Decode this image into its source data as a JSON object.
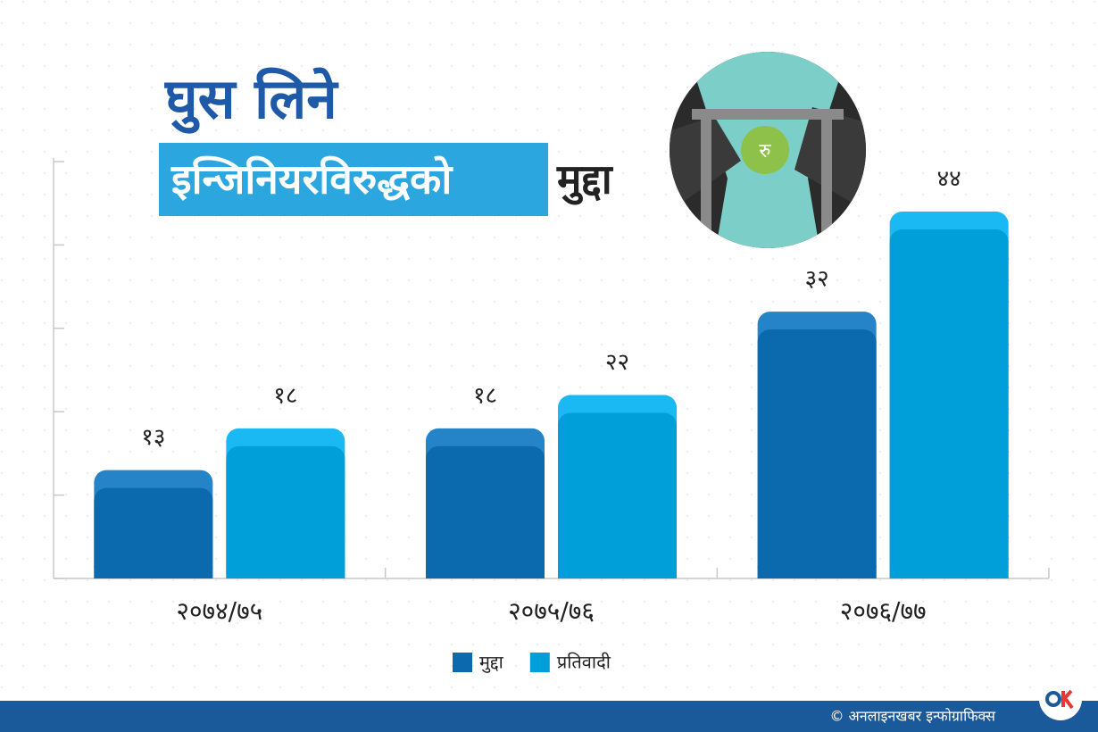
{
  "chart_data": {
    "type": "bar",
    "title": "घुस लिने",
    "subtitle_highlight": "इन्जिनियरविरुद्धको",
    "subtitle_rest": "मुद्दा",
    "illustration_label": "रु",
    "categories": [
      "२०७४/७५",
      "२०७५/७६",
      "२०७६/७७"
    ],
    "series": [
      {
        "name": "मुद्दा",
        "color": "#0b69ad",
        "values": [
          13,
          18,
          32
        ],
        "value_labels": [
          "१३",
          "१८",
          "३२"
        ]
      },
      {
        "name": "प्रतिवादी",
        "color": "#009fd9",
        "values": [
          18,
          22,
          44
        ],
        "value_labels": [
          "१८",
          "२२",
          "४४"
        ]
      }
    ],
    "ylim": [
      0,
      50
    ],
    "yticks": [
      0,
      10,
      20,
      30,
      40,
      50
    ],
    "grid": false,
    "legend": "bottom",
    "footer": "© अनलाइनखबर इन्फोग्राफिक्स"
  }
}
